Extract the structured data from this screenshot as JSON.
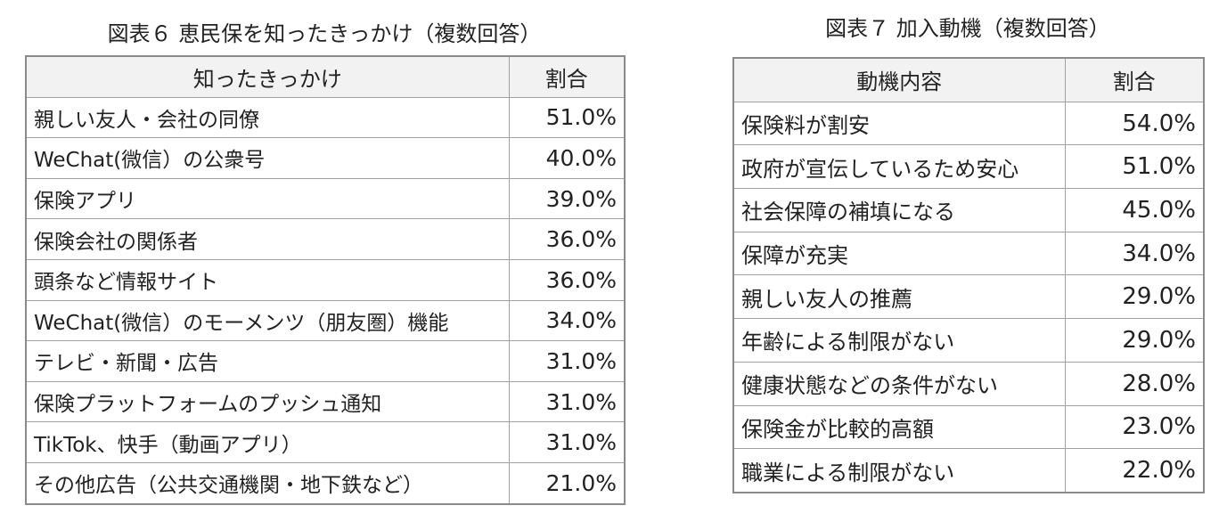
{
  "table6": {
    "caption": "図表６ 恵民保を知ったきっかけ（複数回答）",
    "header_item": "知ったきっかけ",
    "header_pct": "割合",
    "rows": [
      {
        "item": "親しい友人・会社の同僚",
        "pct": "51.0%"
      },
      {
        "item": "WeChat(微信）の公衆号",
        "pct": "40.0%"
      },
      {
        "item": "保険アプリ",
        "pct": "39.0%"
      },
      {
        "item": "保険会社の関係者",
        "pct": "36.0%"
      },
      {
        "item": "頭条など情報サイト",
        "pct": "36.0%"
      },
      {
        "item": "WeChat(微信）のモーメンツ（朋友圏）機能",
        "pct": "34.0%"
      },
      {
        "item": "テレビ・新聞・広告",
        "pct": "31.0%"
      },
      {
        "item": "保険プラットフォームのプッシュ通知",
        "pct": "31.0%"
      },
      {
        "item": "TikTok、快手（動画アプリ）",
        "pct": "31.0%"
      },
      {
        "item": "その他広告（公共交通機関・地下鉄など）",
        "pct": "21.0%"
      }
    ]
  },
  "table7": {
    "caption": "図表７ 加入動機（複数回答）",
    "header_item": "動機内容",
    "header_pct": "割合",
    "rows": [
      {
        "item": "保険料が割安",
        "pct": "54.0%"
      },
      {
        "item": "政府が宣伝しているため安心",
        "pct": "51.0%"
      },
      {
        "item": "社会保障の補填になる",
        "pct": "45.0%"
      },
      {
        "item": "保障が充実",
        "pct": "34.0%"
      },
      {
        "item": "親しい友人の推薦",
        "pct": "29.0%"
      },
      {
        "item": "年齢による制限がない",
        "pct": "29.0%"
      },
      {
        "item": "健康状態などの条件がない",
        "pct": "28.0%"
      },
      {
        "item": "保険金が比較的高額",
        "pct": "23.0%"
      },
      {
        "item": "職業による制限がない",
        "pct": "22.0%"
      }
    ]
  }
}
